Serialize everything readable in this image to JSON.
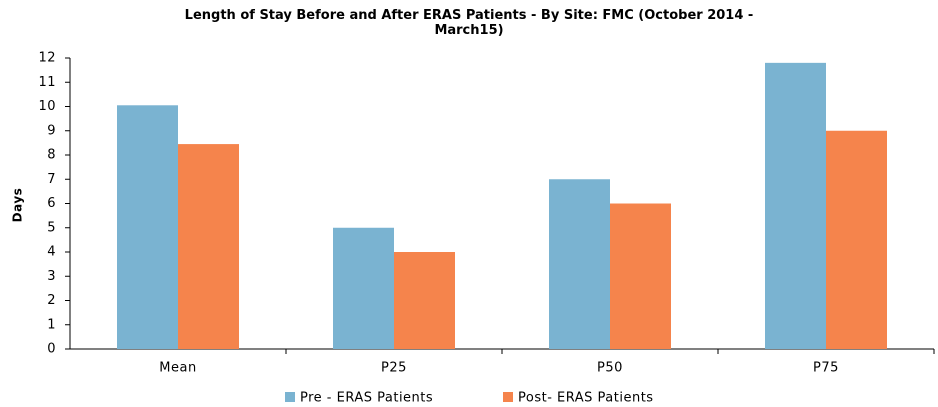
{
  "chart_data": {
    "type": "bar",
    "title": "Length of Stay Before and After ERAS Patients -  By Site: FMC (October 2014 - March15)",
    "y_label": "Days",
    "categories": [
      "Mean",
      "P25",
      "P50",
      "P75"
    ],
    "series": [
      {
        "name": "Pre - ERAS Patients",
        "color": "#7ab3d1",
        "values": [
          10.05,
          5,
          7,
          11.8
        ]
      },
      {
        "name": "Post- ERAS Patients",
        "color": "#f5844c",
        "values": [
          8.45,
          4,
          6,
          9
        ]
      }
    ],
    "ylim": [
      0,
      12
    ],
    "yticks": [
      0,
      1,
      2,
      3,
      4,
      5,
      6,
      7,
      8,
      9,
      10,
      11,
      12
    ],
    "grid": false,
    "legend": "bottom"
  }
}
